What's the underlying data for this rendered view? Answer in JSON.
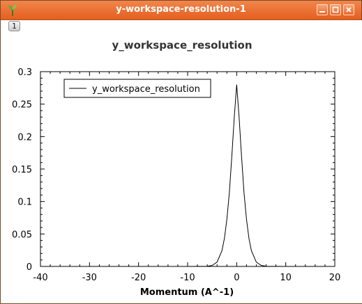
{
  "window": {
    "title": "y-workspace-resolution-1",
    "icon": "mantid-plant-icon",
    "accent_color": "#e8692c"
  },
  "toolbar": {
    "layer_tab_label": "1"
  },
  "chart_data": {
    "type": "line",
    "title": "y_workspace_resolution",
    "xlabel": "Momentum (A^-1)",
    "ylabel": "",
    "xlim": [
      -40,
      20
    ],
    "ylim": [
      0,
      0.3
    ],
    "x_ticks": [
      -40,
      -30,
      -20,
      -10,
      0,
      10,
      20
    ],
    "x_tick_labels": [
      "-40",
      "-30",
      "-20",
      "-10",
      "0",
      "10",
      "20"
    ],
    "y_ticks": [
      0,
      0.05,
      0.1,
      0.15,
      0.2,
      0.25,
      0.3
    ],
    "y_tick_labels": [
      "0",
      "0.05",
      "0.1",
      "0.15",
      "0.2",
      "0.25",
      "0.3"
    ],
    "legend": {
      "placement": "top-left"
    },
    "grid": false,
    "series": [
      {
        "name": "y_workspace_resolution",
        "color": "#000000",
        "x": [
          -37,
          -30,
          -20,
          -10,
          -6,
          -5,
          -4,
          -3,
          -2.5,
          -2,
          -1.5,
          -1,
          -0.5,
          0,
          0.5,
          1,
          1.5,
          2,
          2.5,
          3,
          4,
          5,
          6,
          10,
          18
        ],
        "y": [
          0,
          0,
          0,
          0,
          0.0003,
          0.0016,
          0.0066,
          0.0243,
          0.0432,
          0.0726,
          0.113,
          0.1684,
          0.229,
          0.28,
          0.229,
          0.1684,
          0.113,
          0.0726,
          0.0432,
          0.0243,
          0.0066,
          0.0016,
          0.0003,
          0,
          0
        ]
      }
    ]
  }
}
